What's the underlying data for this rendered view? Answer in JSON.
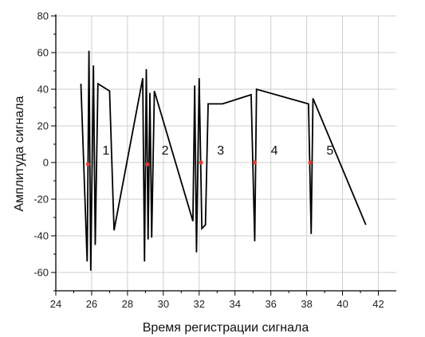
{
  "chart_data": {
    "type": "line",
    "xlabel": "Время регистрации сигнала",
    "ylabel": "Амплитуда сигнала",
    "xlim": [
      24,
      43
    ],
    "ylim": [
      -70,
      80
    ],
    "x_ticks": [
      24,
      26,
      28,
      30,
      32,
      34,
      36,
      38,
      40,
      42
    ],
    "y_ticks": [
      -60,
      -40,
      -20,
      0,
      20,
      40,
      60,
      80
    ],
    "grid": true,
    "series": [
      {
        "line_color": "#000000",
        "points": [
          [
            25.4,
            43
          ],
          [
            25.75,
            -54
          ],
          [
            25.85,
            61
          ],
          [
            25.95,
            -59
          ],
          [
            26.1,
            53
          ],
          [
            26.2,
            -45
          ],
          [
            26.35,
            43
          ],
          [
            27.0,
            39
          ],
          [
            27.25,
            -37
          ],
          [
            28.85,
            46
          ],
          [
            28.95,
            -54
          ],
          [
            29.05,
            51
          ],
          [
            29.15,
            -42
          ],
          [
            29.25,
            38
          ],
          [
            29.35,
            -41
          ],
          [
            29.5,
            39
          ],
          [
            31.65,
            -32
          ],
          [
            31.75,
            42
          ],
          [
            31.85,
            -49
          ],
          [
            32.0,
            46
          ],
          [
            32.15,
            -36
          ],
          [
            32.35,
            -34
          ],
          [
            32.5,
            32
          ],
          [
            33.3,
            32
          ],
          [
            34.9,
            37
          ],
          [
            35.1,
            -43
          ],
          [
            35.2,
            40
          ],
          [
            38.1,
            32
          ],
          [
            38.25,
            -39
          ],
          [
            38.35,
            35
          ],
          [
            41.3,
            -34
          ]
        ]
      }
    ],
    "markers": {
      "color": "#e23b2e",
      "points": [
        [
          25.8,
          -1
        ],
        [
          29.1,
          -1
        ],
        [
          32.1,
          0
        ],
        [
          35.1,
          0
        ],
        [
          38.2,
          0
        ]
      ]
    },
    "annotations": [
      {
        "text": "1",
        "x": 26.6,
        "y": 7
      },
      {
        "text": "2",
        "x": 29.9,
        "y": 7
      },
      {
        "text": "3",
        "x": 33.0,
        "y": 7
      },
      {
        "text": "4",
        "x": 36.0,
        "y": 7
      },
      {
        "text": "5",
        "x": 39.1,
        "y": 7
      }
    ]
  }
}
